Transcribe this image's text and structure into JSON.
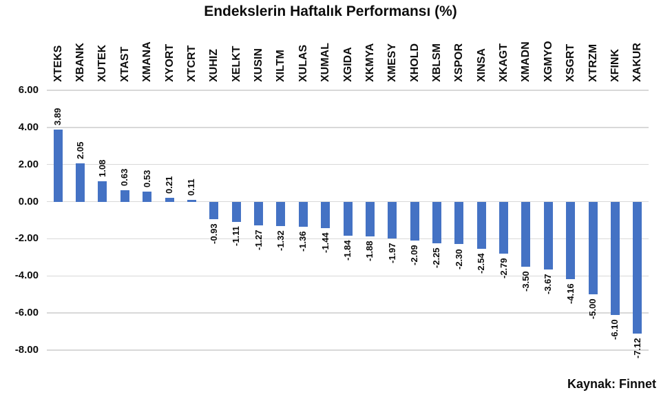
{
  "chart_data": {
    "type": "bar",
    "title": "Endekslerin Haftalık Performansı (%)",
    "source": "Kaynak: Finnet",
    "categories": [
      "XTEKS",
      "XBANK",
      "XUTEK",
      "XTAST",
      "XMANA",
      "XYORT",
      "XTCRT",
      "XUHIZ",
      "XELKT",
      "XUSIN",
      "XILTM",
      "XULAS",
      "XUMAL",
      "XGIDA",
      "XKMYA",
      "XMESY",
      "XHOLD",
      "XBLSM",
      "XSPOR",
      "XINSA",
      "XKAGT",
      "XMADN",
      "XGMYO",
      "XSGRT",
      "XTRZM",
      "XFINK",
      "XAKUR"
    ],
    "values": [
      3.89,
      2.05,
      1.08,
      0.63,
      0.53,
      0.21,
      0.11,
      -0.93,
      -1.11,
      -1.27,
      -1.32,
      -1.36,
      -1.44,
      -1.84,
      -1.88,
      -1.97,
      -2.09,
      -2.25,
      -2.3,
      -2.54,
      -2.79,
      -3.5,
      -3.67,
      -4.16,
      -5.0,
      -6.1,
      -7.12
    ],
    "ylim": [
      -8,
      6
    ],
    "ytick_step": 2,
    "ytick_decimals": 2,
    "value_label_decimals": 2,
    "grid": true,
    "legend": false,
    "category_label_rotation": -90,
    "value_label_rotation": -90,
    "bar_color": "#4472C4",
    "gridline_color": "#D8D8D8",
    "text_color": "#0d0d0d",
    "background": "#FFFFFF"
  }
}
